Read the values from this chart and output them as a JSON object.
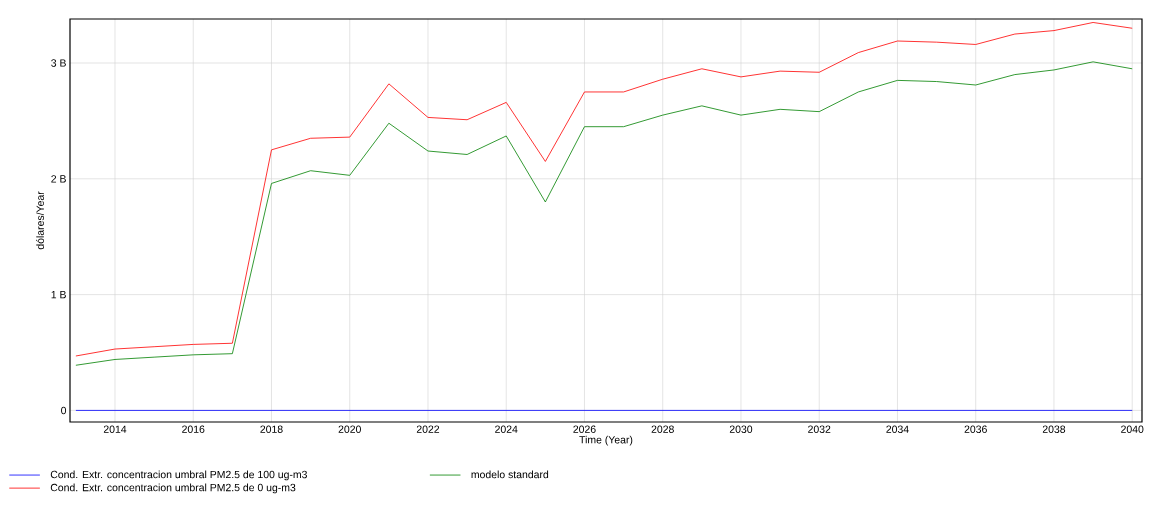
{
  "chart_data": {
    "type": "line",
    "xlabel": "Time (Year)",
    "ylabel": "dólares/Year",
    "x": [
      2013,
      2014,
      2015,
      2016,
      2017,
      2018,
      2019,
      2020,
      2021,
      2022,
      2023,
      2024,
      2025,
      2026,
      2027,
      2028,
      2029,
      2030,
      2031,
      2032,
      2033,
      2034,
      2035,
      2036,
      2037,
      2038,
      2039,
      2040
    ],
    "series": [
      {
        "name": "Cond. Extr. concentracion umbral PM2.5 de 100 ug-m3",
        "color": "#0000ff",
        "values": [
          0,
          0,
          0,
          0,
          0,
          0,
          0,
          0,
          0,
          0,
          0,
          0,
          0,
          0,
          0,
          0,
          0,
          0,
          0,
          0,
          0,
          0,
          0,
          0,
          0,
          0,
          0,
          0
        ]
      },
      {
        "name": "modelo standard",
        "color": "#008000",
        "values": [
          0.39,
          0.44,
          0.46,
          0.48,
          0.49,
          1.96,
          2.07,
          2.03,
          2.48,
          2.24,
          2.21,
          2.37,
          1.8,
          2.45,
          2.45,
          2.55,
          2.63,
          2.55,
          2.6,
          2.58,
          2.75,
          2.85,
          2.84,
          2.81,
          2.9,
          2.94,
          3.01,
          2.95
        ]
      },
      {
        "name": "Cond. Extr. concentracion umbral PM2.5 de 0 ug-m3",
        "color": "#ff0000",
        "values": [
          0.47,
          0.53,
          0.55,
          0.57,
          0.58,
          2.25,
          2.35,
          2.36,
          2.82,
          2.53,
          2.51,
          2.66,
          2.15,
          2.75,
          2.75,
          2.86,
          2.95,
          2.88,
          2.93,
          2.92,
          3.09,
          3.19,
          3.18,
          3.16,
          3.25,
          3.28,
          3.35,
          3.3
        ]
      }
    ],
    "xlim": [
      2012.85,
      2040.25
    ],
    "ylim": [
      -0.1,
      3.38
    ],
    "xticks": [
      2014,
      2016,
      2018,
      2020,
      2022,
      2024,
      2026,
      2028,
      2030,
      2032,
      2034,
      2036,
      2038,
      2040
    ],
    "yticks": [
      0,
      {
        "value": 1,
        "label": "1 B"
      },
      {
        "value": 2,
        "label": "2 B"
      },
      {
        "value": 3,
        "label": "3 B"
      }
    ],
    "grid": true,
    "legend": "bottom",
    "marker": "none",
    "line_style": "solid"
  }
}
